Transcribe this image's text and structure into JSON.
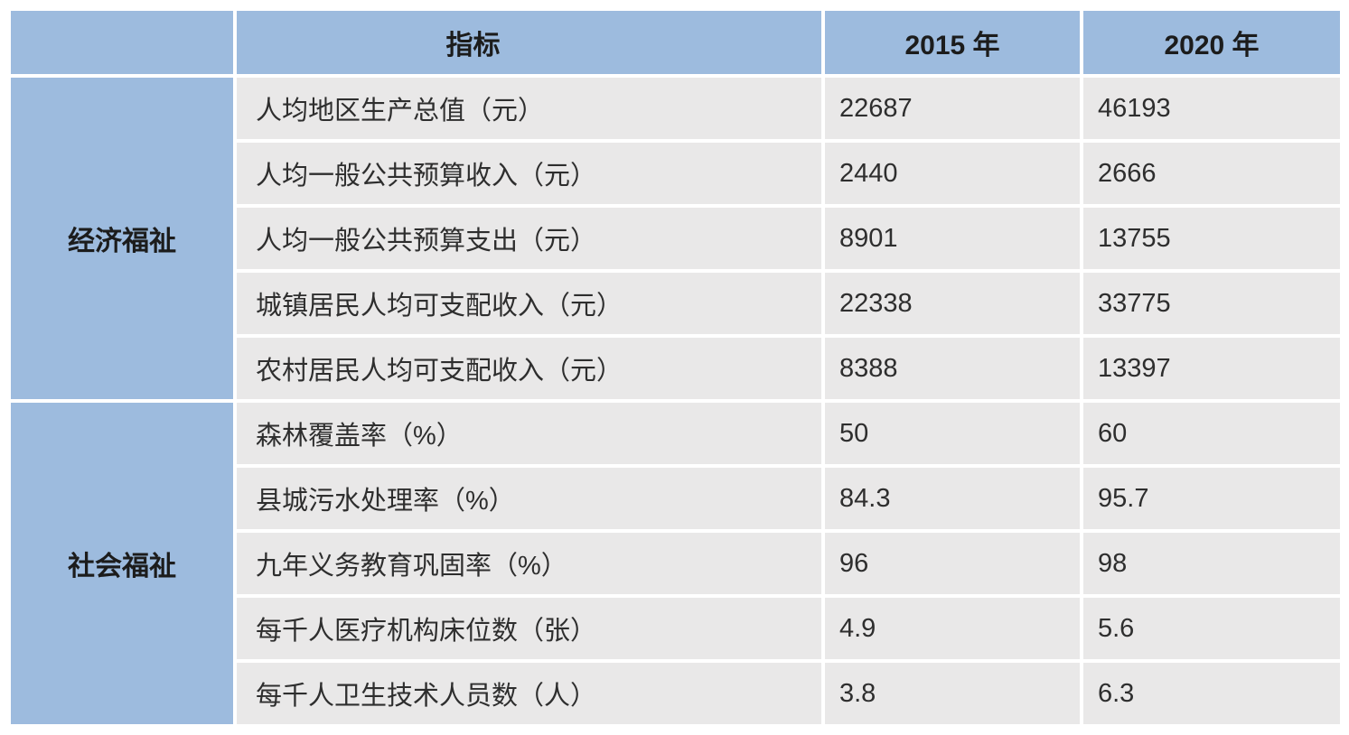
{
  "table": {
    "columns": {
      "indicator": "指标",
      "y2015": "2015 年",
      "y2020": "2020 年"
    },
    "groups": [
      {
        "label": "经济福祉",
        "row_span": 5
      },
      {
        "label": "社会福祉",
        "row_span": 5
      }
    ],
    "rows": [
      {
        "indicator": "人均地区生产总值（元）",
        "y2015": "22687",
        "y2020": "46193"
      },
      {
        "indicator": "人均一般公共预算收入（元）",
        "y2015": "2440",
        "y2020": "2666"
      },
      {
        "indicator": "人均一般公共预算支出（元）",
        "y2015": "8901",
        "y2020": "13755"
      },
      {
        "indicator": "城镇居民人均可支配收入（元）",
        "y2015": "22338",
        "y2020": "33775"
      },
      {
        "indicator": "农村居民人均可支配收入（元）",
        "y2015": "8388",
        "y2020": "13397"
      },
      {
        "indicator": "森林覆盖率（%）",
        "y2015": "50",
        "y2020": "60"
      },
      {
        "indicator": "县城污水处理率（%）",
        "y2015": "84.3",
        "y2020": "95.7"
      },
      {
        "indicator": "九年义务教育巩固率（%）",
        "y2015": "96",
        "y2020": "98"
      },
      {
        "indicator": "每千人医疗机构床位数（张）",
        "y2015": "4.9",
        "y2020": "5.6"
      },
      {
        "indicator": "每千人卫生技术人员数（人）",
        "y2015": "3.8",
        "y2020": "6.3"
      }
    ],
    "colors": {
      "header_blue": "#9DBBDE",
      "cell_gray": "#E9E8E8",
      "divider_white": "#FFFFFF",
      "text_dark": "#1C1C1C"
    }
  },
  "chart_data": {
    "type": "table",
    "title": "",
    "columns": [
      "指标",
      "2015 年",
      "2020 年"
    ],
    "row_groups": [
      {
        "group": "经济福祉",
        "rows": [
          [
            "人均地区生产总值（元）",
            22687,
            46193
          ],
          [
            "人均一般公共预算收入（元）",
            2440,
            2666
          ],
          [
            "人均一般公共预算支出（元）",
            8901,
            13755
          ],
          [
            "城镇居民人均可支配收入（元）",
            22338,
            33775
          ],
          [
            "农村居民人均可支配收入（元）",
            8388,
            13397
          ]
        ]
      },
      {
        "group": "社会福祉",
        "rows": [
          [
            "森林覆盖率（%）",
            50,
            60
          ],
          [
            "县城污水处理率（%）",
            84.3,
            95.7
          ],
          [
            "九年义务教育巩固率（%）",
            96,
            98
          ],
          [
            "每千人医疗机构床位数（张）",
            4.9,
            5.6
          ],
          [
            "每千人卫生技术人员数（人）",
            3.8,
            6.3
          ]
        ]
      }
    ]
  }
}
